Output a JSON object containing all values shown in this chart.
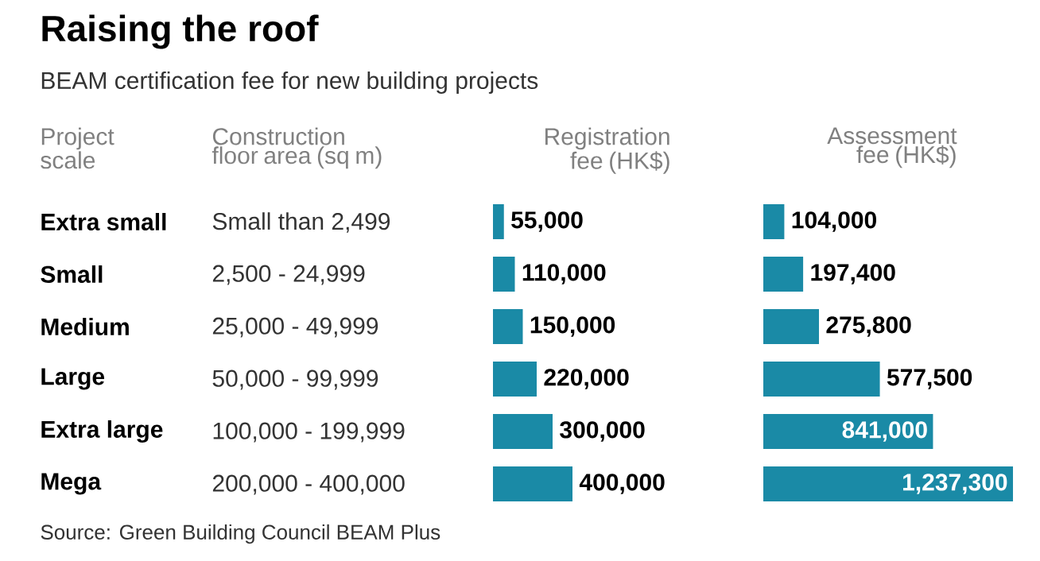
{
  "chart_data": [
    {
      "type": "other",
      "title": "Raising the roof",
      "subtitle": "BEAM certification fee for new building projects",
      "annotations": [
        "Construction floor area (sq m)",
        "Small than 2,499",
        "2,500 - 24,999",
        "25,000 - 49,999",
        "50,000 - 99,999",
        "100,000 - 199,999",
        "200,000 - 400,000",
        "Source: Green Building Council BEAM Plus"
      ]
    },
    {
      "type": "bar",
      "orientation": "horizontal",
      "title": "Registration fee (HK$)",
      "ylabel": "Project scale",
      "categories": [
        "Extra small",
        "Small",
        "Medium",
        "Large",
        "Extra large",
        "Mega"
      ],
      "values": [
        55000,
        110000,
        150000,
        220000,
        300000,
        400000
      ],
      "value_labels": [
        "55,000",
        "110,000",
        "150,000",
        "220,000",
        "300,000",
        "400,000"
      ],
      "color": "#1a8aa6",
      "tick_labels": "y"
    },
    {
      "type": "bar",
      "orientation": "horizontal",
      "title": "Assessment fee (HK$)",
      "categories": [
        null,
        null,
        null,
        null,
        null,
        null
      ],
      "values": [
        104000,
        197400,
        275800,
        577500,
        841000,
        1237300
      ],
      "value_labels": [
        "104,000",
        "197,400",
        "275,800",
        "577,500",
        "841,000",
        "1,237,300"
      ],
      "color": "#1a8aa6"
    }
  ]
}
